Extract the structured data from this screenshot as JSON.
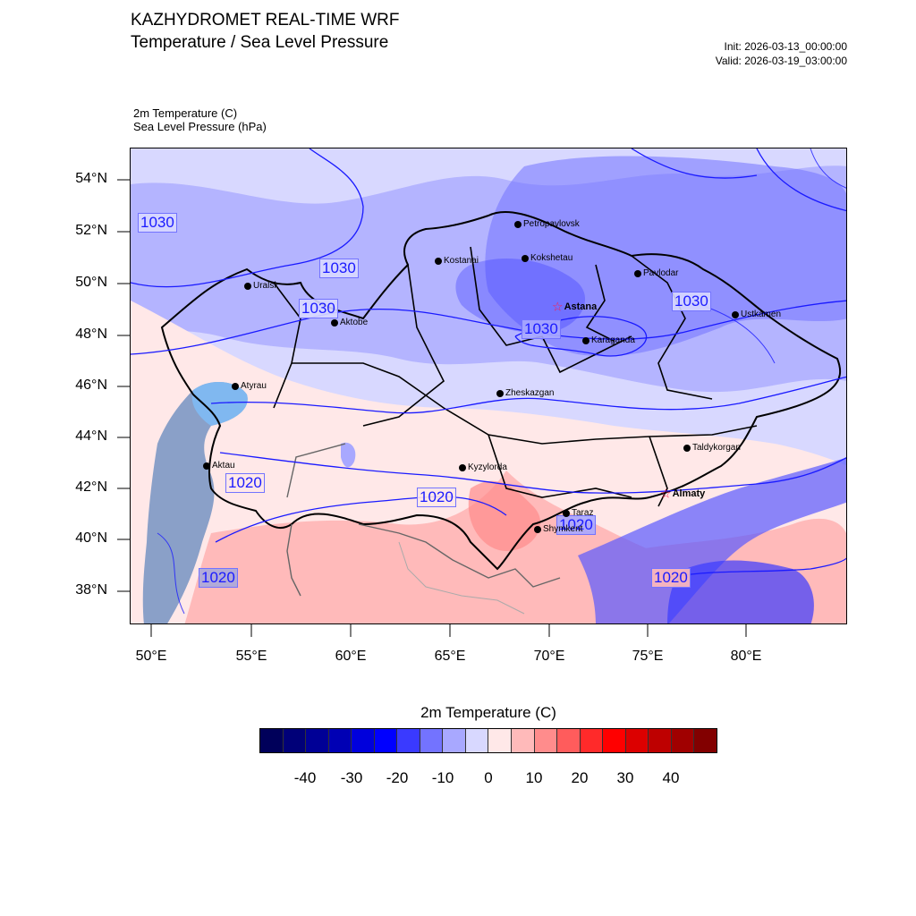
{
  "header": {
    "title_line1": "KAZHYDROMET REAL-TIME WRF",
    "title_line2": "Temperature / Sea Level Pressure",
    "init": "Init: 2026-03-13_00:00:00",
    "valid": "Valid: 2026-03-19_03:00:00"
  },
  "fields": {
    "temperature": "2m Temperature   (C)",
    "pressure": "Sea Level Pressure   (hPa)"
  },
  "map": {
    "lon_ticks": [
      "50°E",
      "55°E",
      "60°E",
      "65°E",
      "70°E",
      "75°E",
      "80°E"
    ],
    "lat_ticks": [
      "54°N",
      "52°N",
      "50°N",
      "48°N",
      "46°N",
      "44°N",
      "42°N",
      "40°N",
      "38°N"
    ],
    "cities": [
      {
        "name": "Petropavlovsk",
        "capital": false
      },
      {
        "name": "Kostanai",
        "capital": false
      },
      {
        "name": "Kokshetau",
        "capital": false
      },
      {
        "name": "Uralsk",
        "capital": false
      },
      {
        "name": "Pavlodar",
        "capital": false
      },
      {
        "name": "Astana",
        "capital": true
      },
      {
        "name": "Aktobe",
        "capital": false
      },
      {
        "name": "Ustkamen",
        "capital": false
      },
      {
        "name": "Karaganda",
        "capital": false
      },
      {
        "name": "Atyrau",
        "capital": false
      },
      {
        "name": "Zheskazgan",
        "capital": false
      },
      {
        "name": "Taldykorgan",
        "capital": false
      },
      {
        "name": "Aktau",
        "capital": false
      },
      {
        "name": "Kyzylorda",
        "capital": false
      },
      {
        "name": "Almaty",
        "capital": true
      },
      {
        "name": "Taraz",
        "capital": false
      },
      {
        "name": "Shymkent",
        "capital": false
      }
    ],
    "isobar_labels": [
      "1030",
      "1030",
      "1030",
      "1030",
      "1030",
      "1020",
      "1020",
      "1020",
      "1020",
      "1020"
    ]
  },
  "colorbar": {
    "title": "2m Temperature  (C)",
    "ticks": [
      "-40",
      "-30",
      "-20",
      "-10",
      "0",
      "10",
      "20",
      "30",
      "40"
    ],
    "colors": [
      "#00005a",
      "#000078",
      "#000096",
      "#0000b4",
      "#0000dc",
      "#0000ff",
      "#3a3aff",
      "#7373ff",
      "#a8a8ff",
      "#d8d8ff",
      "#ffe8e8",
      "#ffbaba",
      "#ff8c8c",
      "#ff5c5c",
      "#ff2a2a",
      "#ff0000",
      "#dc0000",
      "#be0000",
      "#a00000",
      "#820000"
    ]
  },
  "colors": {
    "isobar": "#1a1aff",
    "capital_star": "#ff1a4a",
    "border": "#000000"
  }
}
